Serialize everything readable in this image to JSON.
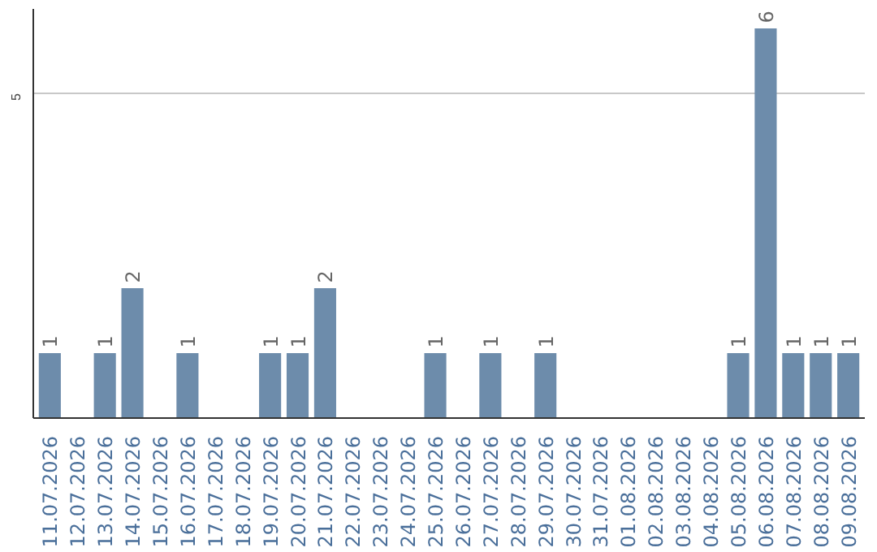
{
  "chart_data": {
    "type": "bar",
    "categories": [
      "11.07.2026",
      "12.07.2026",
      "13.07.2026",
      "14.07.2026",
      "15.07.2026",
      "16.07.2026",
      "17.07.2026",
      "18.07.2026",
      "19.07.2026",
      "20.07.2026",
      "21.07.2026",
      "22.07.2026",
      "23.07.2026",
      "24.07.2026",
      "25.07.2026",
      "26.07.2026",
      "27.07.2026",
      "28.07.2026",
      "29.07.2026",
      "30.07.2026",
      "31.07.2026",
      "01.08.2026",
      "02.08.2026",
      "03.08.2026",
      "04.08.2026",
      "05.08.2026",
      "06.08.2026",
      "07.08.2026",
      "08.08.2026",
      "09.08.2026"
    ],
    "values": [
      1,
      0,
      1,
      2,
      0,
      1,
      0,
      0,
      1,
      1,
      2,
      0,
      0,
      0,
      1,
      0,
      1,
      0,
      1,
      0,
      0,
      0,
      0,
      0,
      0,
      1,
      6,
      1,
      1,
      1
    ],
    "value_labels": [
      "1",
      null,
      "1",
      "2",
      null,
      "1",
      null,
      null,
      "1",
      "1",
      "2",
      null,
      null,
      null,
      "1",
      null,
      "1",
      null,
      "1",
      null,
      null,
      null,
      null,
      null,
      null,
      "1",
      "6",
      "1",
      "1",
      "1"
    ],
    "color": "#6d8cab",
    "ylim": [
      0,
      6.3
    ],
    "yticks": [
      5
    ],
    "grid": "y"
  }
}
